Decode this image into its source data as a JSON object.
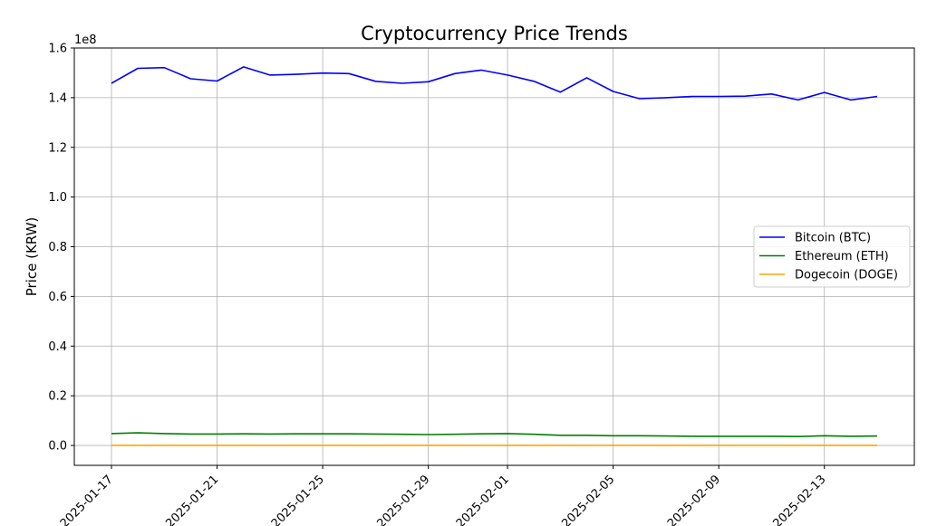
{
  "chart_data": {
    "type": "line",
    "title": "Cryptocurrency Price Trends",
    "xlabel": "",
    "ylabel": "Price (KRW)",
    "y_offset_label": "1e8",
    "ylim": [
      -0.08,
      1.6
    ],
    "y_ticks": [
      0.0,
      0.2,
      0.4,
      0.6,
      0.8,
      1.0,
      1.2,
      1.4,
      1.6
    ],
    "y_tick_labels": [
      "0.0",
      "0.2",
      "0.4",
      "0.6",
      "0.8",
      "1.0",
      "1.2",
      "1.4",
      "1.6"
    ],
    "x_tick_labels": [
      "2025-01-17",
      "2025-01-21",
      "2025-01-25",
      "2025-01-29",
      "2025-02-01",
      "2025-02-05",
      "2025-02-09",
      "2025-02-13"
    ],
    "grid": true,
    "legend_position": "center-right",
    "x": [
      "2025-01-17",
      "2025-01-18",
      "2025-01-19",
      "2025-01-20",
      "2025-01-21",
      "2025-01-22",
      "2025-01-23",
      "2025-01-24",
      "2025-01-25",
      "2025-01-26",
      "2025-01-27",
      "2025-01-28",
      "2025-01-29",
      "2025-01-30",
      "2025-01-31",
      "2025-02-01",
      "2025-02-02",
      "2025-02-03",
      "2025-02-04",
      "2025-02-05",
      "2025-02-06",
      "2025-02-07",
      "2025-02-08",
      "2025-02-09",
      "2025-02-10",
      "2025-02-11",
      "2025-02-12",
      "2025-02-13",
      "2025-02-14",
      "2025-02-15"
    ],
    "series": [
      {
        "name": "Bitcoin (BTC)",
        "color": "#0000ff",
        "values": [
          1.458,
          1.518,
          1.521,
          1.476,
          1.467,
          1.524,
          1.491,
          1.494,
          1.499,
          1.497,
          1.466,
          1.458,
          1.464,
          1.497,
          1.511,
          1.491,
          1.466,
          1.422,
          1.48,
          1.425,
          1.396,
          1.4,
          1.405,
          1.405,
          1.406,
          1.415,
          1.391,
          1.421,
          1.391,
          1.405
        ]
      },
      {
        "name": "Ethereum (ETH)",
        "color": "#008000",
        "values": [
          0.048,
          0.051,
          0.048,
          0.046,
          0.046,
          0.047,
          0.046,
          0.047,
          0.047,
          0.047,
          0.046,
          0.045,
          0.044,
          0.045,
          0.047,
          0.048,
          0.045,
          0.041,
          0.041,
          0.039,
          0.039,
          0.038,
          0.037,
          0.037,
          0.037,
          0.037,
          0.036,
          0.039,
          0.037,
          0.038
        ]
      },
      {
        "name": "Dogecoin (DOGE)",
        "color": "#ffa500",
        "values": [
          0.0005,
          0.0005,
          0.0005,
          0.0005,
          0.0005,
          0.0005,
          0.0005,
          0.0005,
          0.0005,
          0.0005,
          0.0005,
          0.0005,
          0.0005,
          0.0005,
          0.0005,
          0.0005,
          0.0005,
          0.0005,
          0.0005,
          0.0005,
          0.0005,
          0.0005,
          0.0005,
          0.0005,
          0.0005,
          0.0005,
          0.0005,
          0.0005,
          0.0005,
          0.0005
        ]
      }
    ]
  }
}
